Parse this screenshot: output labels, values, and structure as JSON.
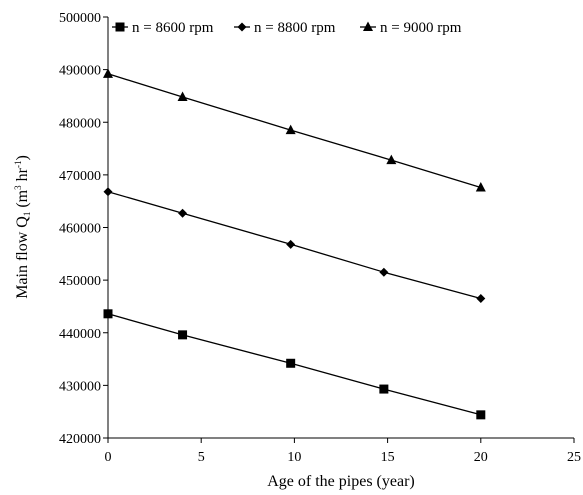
{
  "chart_data": {
    "type": "line",
    "title": "",
    "xlabel": "Age of the pipes (year)",
    "ylabel": {
      "prefix": "Main flow Q",
      "sub": "1",
      "mid": " (m",
      "sup1": "3",
      "mid2": " hr",
      "sup2": "-1",
      "suffix": ")"
    },
    "xlim": [
      0,
      25
    ],
    "ylim": [
      420000,
      500000
    ],
    "x_ticks": [
      "0",
      "5",
      "10",
      "15",
      "20",
      "25"
    ],
    "y_ticks": [
      "420000",
      "430000",
      "440000",
      "450000",
      "460000",
      "470000",
      "480000",
      "490000",
      "500000"
    ],
    "grid": false,
    "legend_position": "top",
    "series": [
      {
        "name": "n = 8600 rpm",
        "marker": "square",
        "color": "#000000",
        "points": [
          [
            0,
            443600
          ],
          [
            4,
            439600
          ],
          [
            9.8,
            434200
          ],
          [
            14.8,
            429300
          ],
          [
            20,
            424400
          ]
        ]
      },
      {
        "name": "n = 8800 rpm",
        "marker": "diamond",
        "color": "#000000",
        "points": [
          [
            0,
            466800
          ],
          [
            4,
            462700
          ],
          [
            9.8,
            456800
          ],
          [
            14.8,
            451500
          ],
          [
            20,
            446500
          ]
        ]
      },
      {
        "name": "n = 9000 rpm",
        "marker": "triangle",
        "color": "#000000",
        "points": [
          [
            0,
            489200
          ],
          [
            4,
            484800
          ],
          [
            9.8,
            478500
          ],
          [
            15.2,
            472800
          ],
          [
            20,
            467600
          ]
        ]
      }
    ]
  }
}
